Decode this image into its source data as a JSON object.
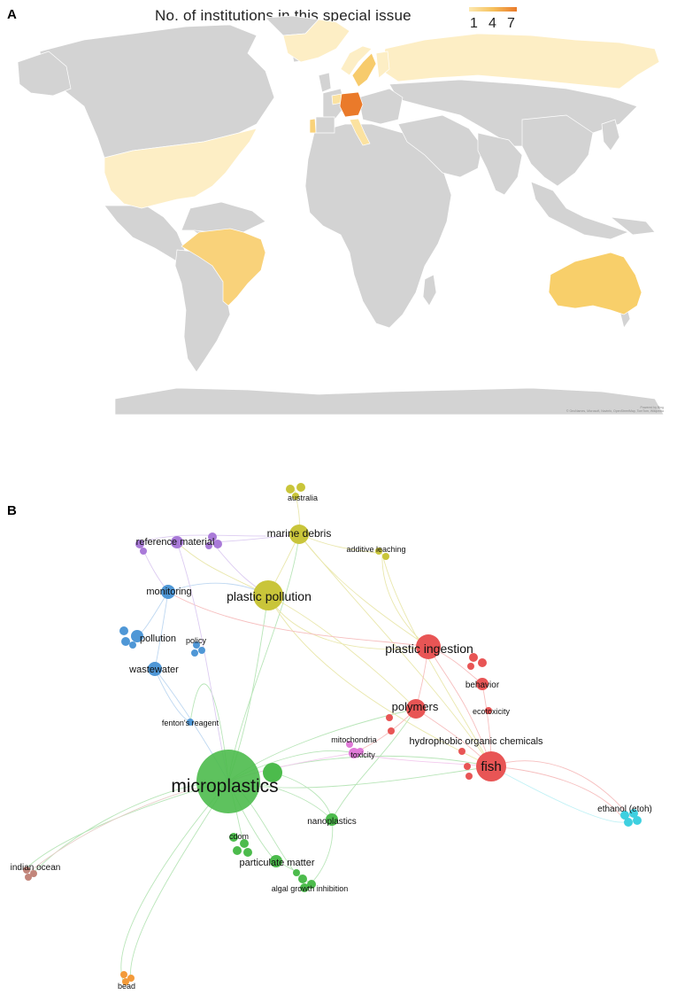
{
  "panel_a": {
    "letter": "A",
    "title": "No. of institutions in this special issue",
    "legend": {
      "ticks": [
        "1",
        "4",
        "7"
      ],
      "colors": [
        "#fde9b0",
        "#f6c15d",
        "#ea7a2a"
      ]
    },
    "attribution_1": "Powered by Bing",
    "attribution_2": "© GeoNames, Microsoft, Navinfo, OpenStreetMap, TomTom, Wikipedia",
    "highlighted_regions": [
      {
        "name": "Germany",
        "level": "high",
        "color": "#ea7a2a"
      },
      {
        "name": "Australia",
        "level": "mid",
        "color": "#f8cf6a"
      },
      {
        "name": "Brazil",
        "level": "mid",
        "color": "#f9d27a"
      },
      {
        "name": "Sweden",
        "level": "mid",
        "color": "#f7cb6c"
      },
      {
        "name": "United States",
        "level": "low",
        "color": "#fdeec5"
      },
      {
        "name": "Russia",
        "level": "low",
        "color": "#fdeec5"
      },
      {
        "name": "Norway",
        "level": "low",
        "color": "#fdeec5"
      },
      {
        "name": "Netherlands",
        "level": "low",
        "color": "#fbe2a0"
      },
      {
        "name": "Italy",
        "level": "low",
        "color": "#fbe2a0"
      },
      {
        "name": "Portugal",
        "level": "low",
        "color": "#f9d27a"
      },
      {
        "name": "Greenland",
        "level": "low",
        "color": "#fdeec5"
      }
    ]
  },
  "panel_b": {
    "letter": "B",
    "cluster_colors": {
      "green": "#4cbb4c",
      "red": "#e85555",
      "yellow": "#c9c53a",
      "blue": "#4f97d6",
      "purple": "#a97ad8",
      "cyan": "#3ed0e0",
      "brown": "#c2857a",
      "orange": "#f39a3a",
      "pink": "#e07ad8"
    },
    "labels": {
      "microplastics": "microplastics",
      "plastic_pollution": "plastic pollution",
      "marine_debris": "marine debris",
      "australia": "australia",
      "additive_leaching": "additive leaching",
      "reference_material": "reference material",
      "monitoring": "monitoring",
      "pollution": "pollution",
      "policy": "policy",
      "wastewater": "wastewater",
      "fentons_reagent": "fenton's reagent",
      "plastic_ingestion": "plastic ingestion",
      "behavior": "behavior",
      "polymers": "polymers",
      "ecotoxicity": "ecotoxicity",
      "mitochondria": "mitochondria",
      "hydrophobic": "hydrophobic organic chemicals",
      "toxicity": "toxicity",
      "fish": "fish",
      "ethanol": "ethanol (etoh)",
      "nanoplastics": "nanoplastics",
      "cdom": "cdom",
      "particulate_matter": "particulate matter",
      "algal": "algal growth inhibition",
      "indian_ocean": "indian ocean",
      "bead": "bead"
    }
  }
}
